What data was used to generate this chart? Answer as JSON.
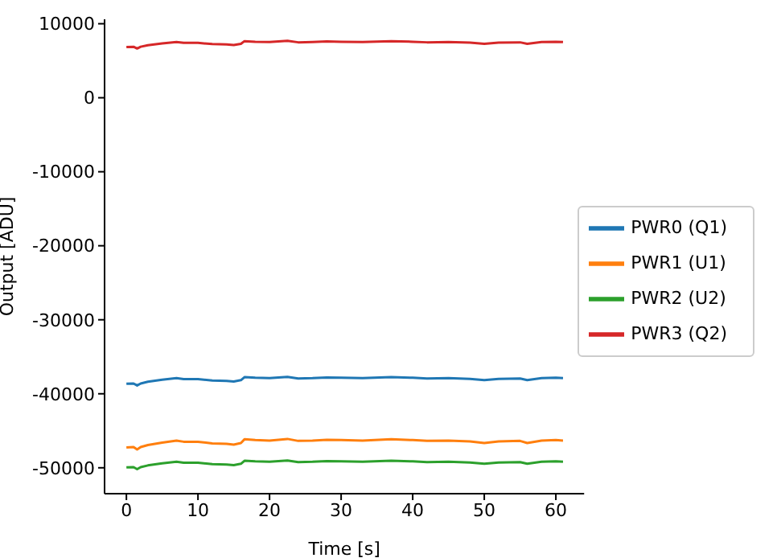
{
  "chart_data": {
    "type": "line",
    "xlabel": "Time [s]",
    "ylabel": "Output [ADU]",
    "x": [
      0,
      1,
      1.5,
      2,
      3,
      5,
      7,
      8,
      10,
      12,
      14,
      15,
      16,
      16.5,
      18,
      20,
      22.5,
      24,
      26,
      28,
      30,
      33,
      37,
      40,
      42,
      45,
      48,
      50,
      52,
      55,
      56,
      58,
      60,
      61
    ],
    "series": [
      {
        "name": "PWR0 (Q1)",
        "color": "#1f77b4",
        "values": [
          -38650,
          -38610,
          -38880,
          -38610,
          -38380,
          -38110,
          -37890,
          -38020,
          -38020,
          -38200,
          -38250,
          -38340,
          -38160,
          -37750,
          -37840,
          -37890,
          -37710,
          -37930,
          -37890,
          -37800,
          -37840,
          -37890,
          -37750,
          -37840,
          -37930,
          -37890,
          -37980,
          -38160,
          -37980,
          -37930,
          -38160,
          -37890,
          -37840,
          -37890
        ]
      },
      {
        "name": "PWR1 (U1)",
        "color": "#ff7f0e",
        "values": [
          -47250,
          -47200,
          -47530,
          -47200,
          -46920,
          -46590,
          -46320,
          -46480,
          -46480,
          -46700,
          -46760,
          -46870,
          -46650,
          -46150,
          -46260,
          -46320,
          -46100,
          -46370,
          -46320,
          -46210,
          -46260,
          -46320,
          -46150,
          -46260,
          -46370,
          -46320,
          -46430,
          -46650,
          -46430,
          -46370,
          -46650,
          -46320,
          -46260,
          -46320
        ]
      },
      {
        "name": "PWR2 (U2)",
        "color": "#2ca02c",
        "values": [
          -49950,
          -49910,
          -50180,
          -49910,
          -49680,
          -49410,
          -49190,
          -49320,
          -49320,
          -49500,
          -49550,
          -49640,
          -49460,
          -49050,
          -49140,
          -49190,
          -49010,
          -49230,
          -49190,
          -49100,
          -49140,
          -49190,
          -49050,
          -49140,
          -49230,
          -49190,
          -49280,
          -49460,
          -49280,
          -49230,
          -49460,
          -49190,
          -49140,
          -49190
        ]
      },
      {
        "name": "PWR3 (Q2)",
        "color": "#d62728",
        "values": [
          6850,
          6890,
          6650,
          6890,
          7090,
          7330,
          7530,
          7410,
          7410,
          7250,
          7210,
          7130,
          7290,
          7650,
          7570,
          7530,
          7690,
          7490,
          7530,
          7610,
          7570,
          7530,
          7650,
          7570,
          7490,
          7530,
          7450,
          7290,
          7450,
          7490,
          7290,
          7530,
          7570,
          7530
        ]
      }
    ],
    "xlim": [
      -3.05,
      63.95
    ],
    "xticks": [
      0,
      10,
      20,
      30,
      40,
      50,
      60
    ],
    "ylim": [
      -53500,
      10600
    ],
    "yticks": [
      -50000,
      -40000,
      -30000,
      -20000,
      -10000,
      0,
      10000
    ],
    "grid": false,
    "legend": "right",
    "marker": "none",
    "line_style": "solid"
  }
}
